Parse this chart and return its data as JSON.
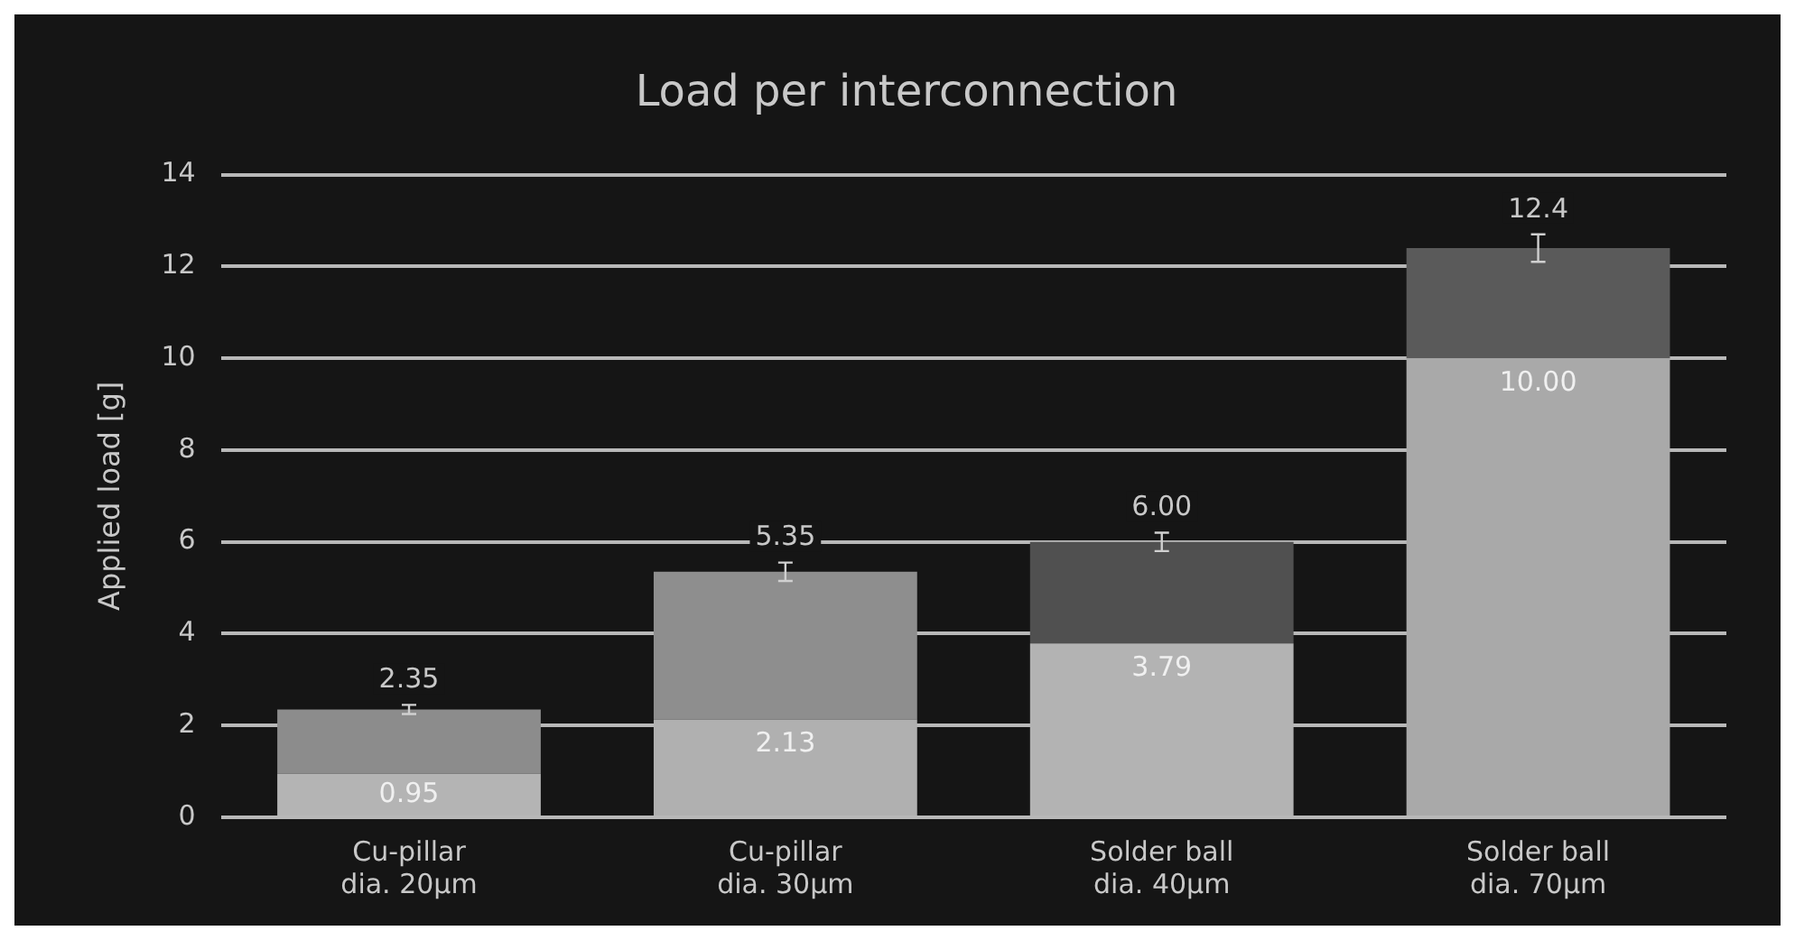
{
  "chart_data": {
    "type": "bar",
    "title": "Load per interconnection",
    "ylabel": "Applied load [g]",
    "categories": [
      "Cu-pillar\ndia. 20µm",
      "Cu-pillar\ndia. 30µm",
      "Solder ball\ndia. 40µm",
      "Solder ball\ndia. 70µm"
    ],
    "stacked": true,
    "series": [
      {
        "colors": [
          "#b4b4b4",
          "#b0b0b0",
          "#b3b3b3",
          "#a9a9a9"
        ],
        "values": [
          0.95,
          2.13,
          3.79,
          10.0
        ],
        "value_labels": [
          "0.95",
          "2.13",
          "3.79",
          "10.00"
        ]
      },
      {
        "colors": [
          "#8c8c8c",
          "#8e8e8e",
          "#505050",
          "#5a5a5a"
        ],
        "values": [
          1.4,
          3.22,
          2.21,
          2.4
        ],
        "errors": [
          0.1,
          0.2,
          0.2,
          0.3
        ]
      }
    ],
    "totals": [
      "2.35",
      "5.35",
      "6.00",
      "12.4"
    ],
    "ylim": [
      0,
      14
    ],
    "yticks": [
      0,
      2,
      4,
      6,
      8,
      10,
      12,
      14
    ],
    "grid": "y",
    "legend": false
  }
}
